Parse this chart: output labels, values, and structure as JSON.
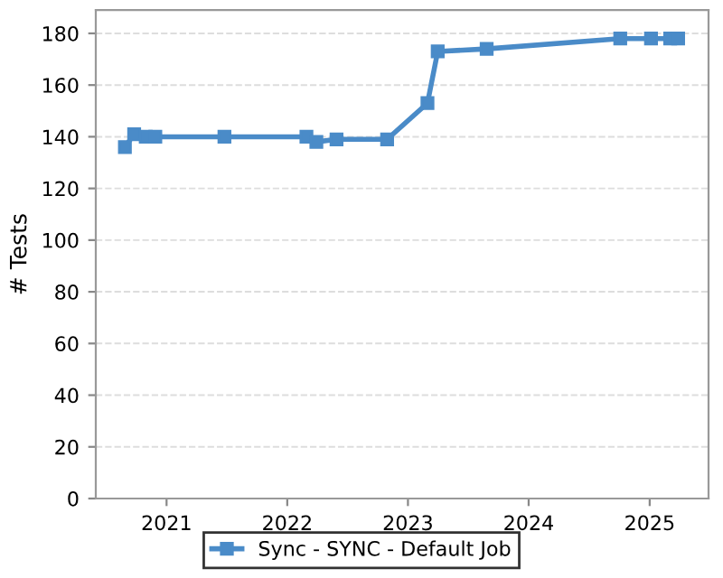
{
  "chart_data": {
    "type": "line",
    "ylabel": "# Tests",
    "x": [
      "2020-08-28",
      "2020-09-25",
      "2020-10-30",
      "2020-11-28",
      "2021-06-25",
      "2022-02-28",
      "2022-03-30",
      "2022-05-30",
      "2022-10-30",
      "2023-03-01",
      "2023-04-01",
      "2023-08-27",
      "2024-10-04",
      "2025-01-05",
      "2025-03-04",
      "2025-03-28"
    ],
    "series": [
      {
        "name": "Sync - SYNC - Default Job",
        "color": "#4a8bc8",
        "values": [
          136,
          141,
          140,
          140,
          140,
          140,
          138,
          139,
          139,
          153,
          173,
          174,
          178,
          178,
          178,
          178
        ]
      }
    ],
    "xlim": [
      "2020-06-01",
      "2025-06-28"
    ],
    "xticks": [
      {
        "value": "2021-01-01",
        "label": "2021"
      },
      {
        "value": "2022-01-01",
        "label": "2022"
      },
      {
        "value": "2023-01-01",
        "label": "2023"
      },
      {
        "value": "2024-01-01",
        "label": "2024"
      },
      {
        "value": "2025-01-01",
        "label": "2025"
      }
    ],
    "ylim": [
      0,
      189
    ],
    "yticks": [
      0,
      20,
      40,
      60,
      80,
      100,
      120,
      140,
      160,
      180
    ],
    "grid": "y",
    "legend": "bottom",
    "marker": "square",
    "line_style": "solid"
  }
}
